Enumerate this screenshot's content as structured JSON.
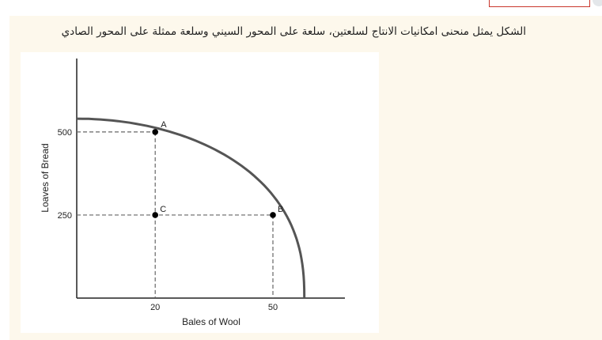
{
  "header": {
    "question_text": "الشكل يمثل منحنى امكانيات الانتاج لسلعتين، سلعة على المحور السيني وسلعة ممثلة على المحور الصادي"
  },
  "chart_data": {
    "type": "line",
    "title": "",
    "xlabel": "Bales of Wool",
    "ylabel": "Loaves of Bread",
    "xticks": [
      "20",
      "50"
    ],
    "yticks": [
      "500",
      "250"
    ],
    "points": [
      {
        "label": "A",
        "x": 20,
        "y": 500
      },
      {
        "label": "B",
        "x": 50,
        "y": 250
      },
      {
        "label": "C",
        "x": 20,
        "y": 250
      }
    ],
    "curve": {
      "y_intercept": 540,
      "x_intercept": 58
    },
    "grid": false,
    "colors": {
      "curve": "#555555",
      "axis": "#222222",
      "guides": "#666666",
      "points": "#000000"
    }
  }
}
